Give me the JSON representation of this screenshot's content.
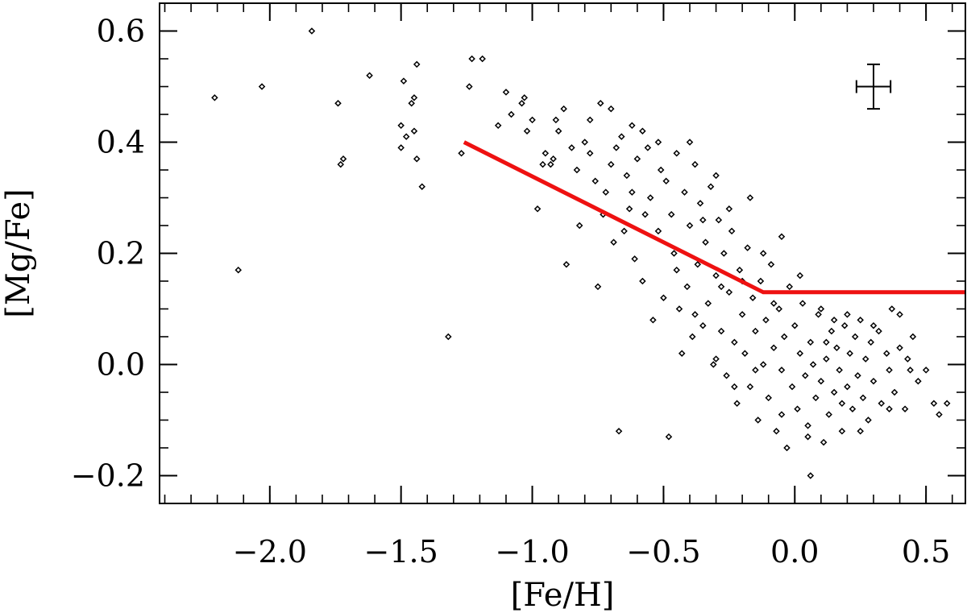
{
  "chart_data": {
    "type": "scatter",
    "xlabel": "[Fe/H]",
    "ylabel": "[Mg/Fe]",
    "xlim": [
      -2.42,
      0.65
    ],
    "ylim": [
      -0.25,
      0.65
    ],
    "x_ticks": [
      {
        "value": -2.0,
        "label": "−2.0"
      },
      {
        "value": -1.5,
        "label": "−1.5"
      },
      {
        "value": -1.0,
        "label": "−1.0"
      },
      {
        "value": -0.5,
        "label": "−0.5"
      },
      {
        "value": 0.0,
        "label": "0.0"
      },
      {
        "value": 0.5,
        "label": "0.5"
      }
    ],
    "y_ticks": [
      {
        "value": -0.2,
        "label": "−0.2"
      },
      {
        "value": 0.0,
        "label": "0.0"
      },
      {
        "value": 0.2,
        "label": "0.2"
      },
      {
        "value": 0.4,
        "label": "0.4"
      },
      {
        "value": 0.6,
        "label": "0.6"
      }
    ],
    "x_minor_step": 0.1,
    "y_minor_step": 0.05,
    "grid": false,
    "marker": "open-diamond",
    "trend_line": {
      "color": "#ee1111",
      "points": [
        [
          -1.26,
          0.4
        ],
        [
          -0.88,
          0.31
        ],
        [
          -0.12,
          0.13
        ],
        [
          0.65,
          0.13
        ]
      ]
    },
    "error_bar": {
      "x": 0.3,
      "y": 0.5,
      "xerr": 0.065,
      "yerr": 0.04
    },
    "series": [
      {
        "points": [
          [
            -2.21,
            0.48
          ],
          [
            -2.12,
            0.17
          ],
          [
            -2.03,
            0.5
          ],
          [
            -1.84,
            0.6
          ],
          [
            -1.74,
            0.47
          ],
          [
            -1.73,
            0.36
          ],
          [
            -1.72,
            0.37
          ],
          [
            -1.62,
            0.52
          ],
          [
            -1.5,
            0.39
          ],
          [
            -1.5,
            0.43
          ],
          [
            -1.49,
            0.51
          ],
          [
            -1.48,
            0.41
          ],
          [
            -1.46,
            0.47
          ],
          [
            -1.45,
            0.48
          ],
          [
            -1.45,
            0.42
          ],
          [
            -1.44,
            0.54
          ],
          [
            -1.44,
            0.37
          ],
          [
            -1.42,
            0.32
          ],
          [
            -1.32,
            0.05
          ],
          [
            -1.27,
            0.38
          ],
          [
            -1.24,
            0.5
          ],
          [
            -1.23,
            0.55
          ],
          [
            -1.19,
            0.55
          ],
          [
            -1.13,
            0.43
          ],
          [
            -1.1,
            0.49
          ],
          [
            -1.08,
            0.45
          ],
          [
            -1.04,
            0.47
          ],
          [
            -1.03,
            0.48
          ],
          [
            -1.02,
            0.42
          ],
          [
            -1.0,
            0.44
          ],
          [
            -0.98,
            0.28
          ],
          [
            -0.96,
            0.36
          ],
          [
            -0.95,
            0.38
          ],
          [
            -0.93,
            0.36
          ],
          [
            -0.92,
            0.37
          ],
          [
            -0.9,
            0.42
          ],
          [
            -0.87,
            0.18
          ],
          [
            -0.85,
            0.39
          ],
          [
            -0.83,
            0.35
          ],
          [
            -0.82,
            0.25
          ],
          [
            -0.8,
            0.4
          ],
          [
            -0.78,
            0.38
          ],
          [
            -0.76,
            0.33
          ],
          [
            -0.75,
            0.14
          ],
          [
            -0.74,
            0.47
          ],
          [
            -0.72,
            0.31
          ],
          [
            -0.7,
            0.36
          ],
          [
            -0.69,
            0.22
          ],
          [
            -0.67,
            -0.12
          ],
          [
            -0.66,
            0.41
          ],
          [
            -0.64,
            0.34
          ],
          [
            -0.63,
            0.28
          ],
          [
            -0.62,
            0.43
          ],
          [
            -0.61,
            0.19
          ],
          [
            -0.6,
            0.37
          ],
          [
            -0.58,
            0.15
          ],
          [
            -0.56,
            0.39
          ],
          [
            -0.55,
            0.3
          ],
          [
            -0.54,
            0.08
          ],
          [
            -0.52,
            0.24
          ],
          [
            -0.51,
            0.35
          ],
          [
            -0.5,
            0.12
          ],
          [
            -0.49,
            0.33
          ],
          [
            -0.48,
            -0.13
          ],
          [
            -0.47,
            0.27
          ],
          [
            -0.46,
            0.2
          ],
          [
            -0.45,
            0.38
          ],
          [
            -0.44,
            0.1
          ],
          [
            -0.43,
            0.02
          ],
          [
            -0.42,
            0.31
          ],
          [
            -0.41,
            0.14
          ],
          [
            -0.4,
            0.25
          ],
          [
            -0.39,
            0.05
          ],
          [
            -0.38,
            0.36
          ],
          [
            -0.37,
            0.18
          ],
          [
            -0.36,
            0.29
          ],
          [
            -0.35,
            0.07
          ],
          [
            -0.34,
            0.22
          ],
          [
            -0.33,
            0.11
          ],
          [
            -0.32,
            0.32
          ],
          [
            -0.31,
            0.0
          ],
          [
            -0.3,
            0.16
          ],
          [
            -0.29,
            0.26
          ],
          [
            -0.28,
            0.06
          ],
          [
            -0.27,
            0.2
          ],
          [
            -0.26,
            -0.02
          ],
          [
            -0.25,
            0.13
          ],
          [
            -0.24,
            0.24
          ],
          [
            -0.23,
            0.04
          ],
          [
            -0.22,
            -0.07
          ],
          [
            -0.21,
            0.17
          ],
          [
            -0.2,
            0.09
          ],
          [
            -0.19,
            0.02
          ],
          [
            -0.18,
            0.21
          ],
          [
            -0.17,
            -0.04
          ],
          [
            -0.16,
            0.12
          ],
          [
            -0.15,
            0.06
          ],
          [
            -0.14,
            -0.1
          ],
          [
            -0.13,
            0.15
          ],
          [
            -0.12,
            0.0
          ],
          [
            -0.11,
            0.08
          ],
          [
            -0.1,
            -0.06
          ],
          [
            -0.09,
            0.18
          ],
          [
            -0.08,
            0.03
          ],
          [
            -0.07,
            -0.12
          ],
          [
            -0.06,
            0.1
          ],
          [
            -0.05,
            -0.01
          ],
          [
            -0.04,
            0.05
          ],
          [
            -0.03,
            -0.15
          ],
          [
            -0.02,
            0.14
          ],
          [
            -0.01,
            -0.04
          ],
          [
            0.0,
            0.07
          ],
          [
            0.01,
            -0.08
          ],
          [
            0.02,
            0.02
          ],
          [
            0.03,
            0.11
          ],
          [
            0.04,
            -0.02
          ],
          [
            0.05,
            -0.11
          ],
          [
            0.06,
            0.04
          ],
          [
            0.07,
            0.0
          ],
          [
            0.08,
            -0.06
          ],
          [
            0.09,
            0.09
          ],
          [
            0.1,
            -0.03
          ],
          [
            0.11,
            -0.14
          ],
          [
            0.12,
            0.01
          ],
          [
            0.13,
            -0.09
          ],
          [
            0.14,
            0.06
          ],
          [
            0.15,
            -0.05
          ],
          [
            0.16,
            0.03
          ],
          [
            0.17,
            -0.01
          ],
          [
            0.18,
            -0.12
          ],
          [
            0.19,
            0.07
          ],
          [
            0.2,
            -0.04
          ],
          [
            0.21,
            0.02
          ],
          [
            0.22,
            -0.08
          ],
          [
            0.23,
            0.05
          ],
          [
            0.24,
            -0.02
          ],
          [
            0.25,
            0.08
          ],
          [
            0.26,
            -0.06
          ],
          [
            0.27,
            0.01
          ],
          [
            0.28,
            -0.1
          ],
          [
            0.29,
            0.04
          ],
          [
            0.3,
            -0.03
          ],
          [
            0.32,
            0.06
          ],
          [
            0.33,
            -0.07
          ],
          [
            0.35,
            0.02
          ],
          [
            0.36,
            -0.01
          ],
          [
            0.37,
            0.1
          ],
          [
            0.38,
            -0.05
          ],
          [
            0.4,
            0.03
          ],
          [
            0.42,
            -0.08
          ],
          [
            0.43,
            0.01
          ],
          [
            0.45,
            0.05
          ],
          [
            0.47,
            -0.03
          ],
          [
            0.5,
            -0.01
          ],
          [
            0.53,
            -0.07
          ],
          [
            0.55,
            -0.09
          ],
          [
            0.58,
            -0.07
          ],
          [
            0.06,
            -0.2
          ],
          [
            -0.05,
            0.23
          ],
          [
            -0.17,
            0.3
          ],
          [
            0.1,
            0.1
          ],
          [
            -0.7,
            0.46
          ],
          [
            -0.58,
            0.42
          ],
          [
            -0.3,
            0.34
          ],
          [
            -0.25,
            0.28
          ],
          [
            -0.35,
            0.26
          ],
          [
            -0.4,
            0.4
          ],
          [
            -0.52,
            0.4
          ],
          [
            -0.62,
            0.31
          ],
          [
            -0.68,
            0.39
          ],
          [
            -0.78,
            0.44
          ],
          [
            -0.88,
            0.46
          ],
          [
            -0.91,
            0.44
          ],
          [
            -0.73,
            0.27
          ],
          [
            -0.65,
            0.24
          ],
          [
            -0.57,
            0.27
          ],
          [
            -0.45,
            0.17
          ],
          [
            -0.38,
            0.09
          ],
          [
            -0.28,
            0.14
          ],
          [
            -0.2,
            0.15
          ],
          [
            -0.12,
            0.2
          ],
          [
            0.02,
            0.16
          ],
          [
            0.12,
            0.04
          ],
          [
            0.2,
            0.09
          ],
          [
            0.3,
            0.07
          ],
          [
            0.4,
            0.09
          ],
          [
            0.15,
            0.08
          ],
          [
            -0.08,
            0.11
          ],
          [
            -0.15,
            -0.01
          ],
          [
            -0.23,
            -0.04
          ],
          [
            -0.3,
            0.01
          ],
          [
            -0.05,
            -0.09
          ],
          [
            0.05,
            -0.13
          ],
          [
            0.18,
            -0.07
          ],
          [
            0.25,
            -0.12
          ],
          [
            0.36,
            -0.08
          ],
          [
            0.44,
            -0.01
          ]
        ]
      }
    ]
  }
}
